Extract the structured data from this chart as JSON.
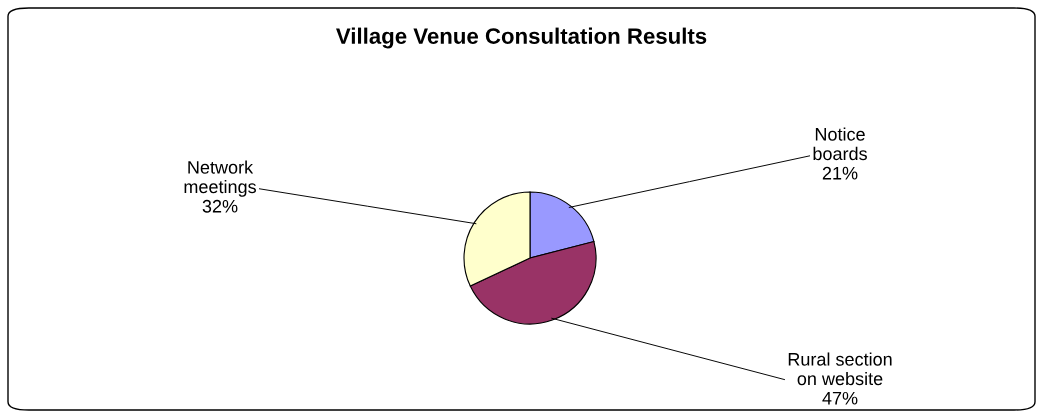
{
  "chart_data": {
    "type": "pie",
    "title": "Village Venue Consultation Results",
    "categories": [
      "Notice\nboards",
      "Rural section\non website",
      "Network\nmeetings"
    ],
    "values": [
      21,
      47,
      32
    ],
    "colors": [
      "#9999ff",
      "#993366",
      "#ffffcc"
    ],
    "value_labels": [
      "21%",
      "47%",
      "32%"
    ],
    "legend": false
  }
}
